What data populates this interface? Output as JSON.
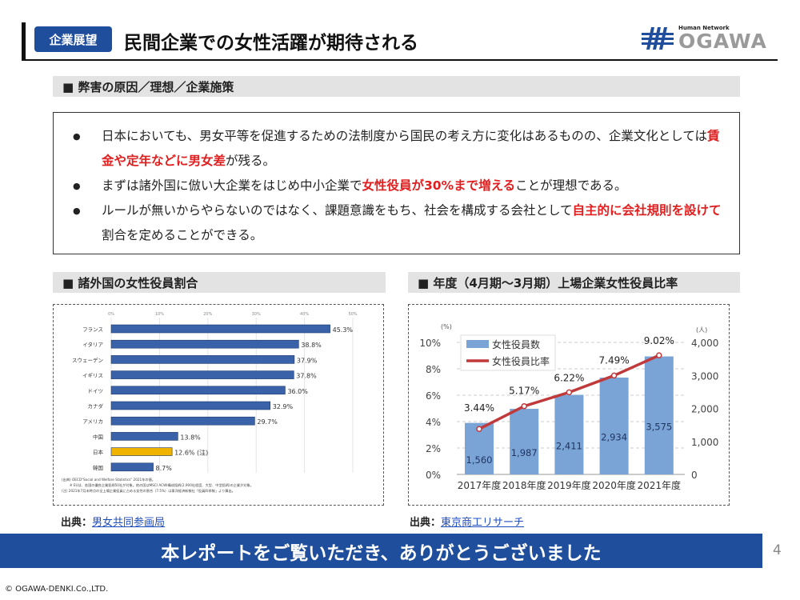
{
  "header": {
    "badge": "企業展望",
    "title": "民間企業での女性活躍が期待される",
    "logo_tagline": "Human Network",
    "logo_text": "OGAWA"
  },
  "section1": {
    "title": "■ 弊害の原因／理想／企業施策",
    "bullets": [
      [
        {
          "t": "日本においても、男女平等を促進するための法制度から国民の考え方に変化はあるものの、企業文化としては"
        },
        {
          "t": "賃金や定年などに男女差",
          "red": true
        },
        {
          "t": "が残る。"
        }
      ],
      [
        {
          "t": "まずは諸外国に倣い大企業をはじめ中小企業で"
        },
        {
          "t": "女性役員が30%まで増える",
          "red": true
        },
        {
          "t": "ことが理想である。"
        }
      ],
      [
        {
          "t": "ルールが無いからやらないのではなく、課題意識をもち、社会を構成する会社として"
        },
        {
          "t": "自主的に会社規則を設けて",
          "red": true
        },
        {
          "t": "割合を定めることができる。"
        }
      ]
    ]
  },
  "section2": {
    "title": "■ 諸外国の女性役員割合",
    "source_label": "出典：",
    "source_link": "男女共同参画局"
  },
  "section3": {
    "title": "■ 年度（4月期～3月期）上場企業女性役員比率",
    "source_label": "出典：",
    "source_link": "東京商工リサーチ"
  },
  "banner": "本レポートをご覧いただき、ありがとうございました",
  "page_number": "4",
  "copyright": "© OGAWA-DENKI.Co.,LTD.",
  "chart_data": [
    {
      "type": "bar",
      "orientation": "horizontal",
      "categories": [
        "フランス",
        "イタリア",
        "スウェーデン",
        "イギリス",
        "ドイツ",
        "カナダ",
        "アメリカ",
        "中国",
        "日本",
        "韓国"
      ],
      "values": [
        45.3,
        38.8,
        37.9,
        37.8,
        36.0,
        32.9,
        29.7,
        13.8,
        12.6,
        8.7
      ],
      "data_labels": [
        "45.3%",
        "38.8%",
        "37.9%",
        "37.8%",
        "36.0%",
        "32.9%",
        "29.7%",
        "13.8%",
        "12.6% (注)",
        "8.7%"
      ],
      "highlight": {
        "category": "日本",
        "color": "#f0b400"
      },
      "bar_color": "#3a62a8",
      "xlim": [
        0,
        50
      ],
      "xticks": [
        "0%",
        "10%",
        "20%",
        "30%",
        "40%",
        "50%"
      ],
      "grid": true,
      "notes": [
        "(出典) OECD\"Social and Welfare Statistics\" 2021年の値。",
        "※ EUは、各国の優良企業銘柄50社が対象。他の国はMSCI ACWI構成銘柄(2,900社程度、大型、中型銘柄)の企業が対象。",
        "(注) 2021年7月末時点の全上場企業役員に占める女性の割合（7.5%）は東洋経済新報社「役員四季報」より算出。"
      ]
    },
    {
      "type": "bar+line",
      "categories": [
        "2017年度",
        "2018年度",
        "2019年度",
        "2020年度",
        "2021年度"
      ],
      "series": [
        {
          "name": "女性役員数",
          "type": "bar",
          "axis": "right",
          "values": [
            1560,
            1987,
            2411,
            2934,
            3575
          ],
          "labels": [
            "1,560",
            "1,987",
            "2,411",
            "2,934",
            "3,575"
          ],
          "color": "#7aa3d6"
        },
        {
          "name": "女性役員比率",
          "type": "line",
          "axis": "left",
          "values": [
            3.44,
            5.17,
            6.22,
            7.49,
            9.02
          ],
          "labels": [
            "3.44%",
            "5.17%",
            "6.22%",
            "7.49%",
            "9.02%"
          ],
          "color": "#c0393b"
        }
      ],
      "left_unit": "(%)",
      "right_unit": "(人)",
      "ylim_left": [
        0,
        10
      ],
      "yticks_left": [
        "0%",
        "2%",
        "4%",
        "6%",
        "8%",
        "10%"
      ],
      "ylim_right": [
        0,
        4000
      ],
      "yticks_right": [
        "0",
        "1,000",
        "2,000",
        "3,000",
        "4,000"
      ],
      "grid": true,
      "legend": "top-left"
    }
  ]
}
